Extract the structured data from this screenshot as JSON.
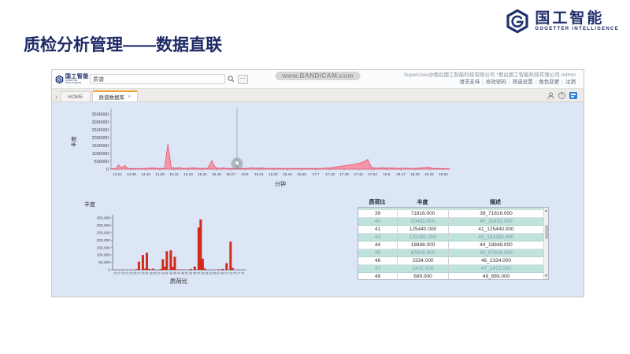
{
  "slide": {
    "title": "质检分析管理——数据直联",
    "brand": {
      "name": "国工智能",
      "subtitle": "GOGETTER INTELLIGENCE"
    }
  },
  "app": {
    "header": {
      "logo_name": "国工智能",
      "logo_sub": "GOGETTER INTELLIGENCE",
      "search_value": "质谱",
      "more_button": "⋯",
      "watermark": "www.BANDICAM.com",
      "user_line": "SuperUser@烟台国工智能科技有限公司 *烟台国工智能科技有限公司 Admin",
      "links": [
        "请求支持",
        "修改密码",
        "筛选设置",
        "角色变更",
        "注销"
      ],
      "link_separator": "|"
    },
    "tab_bar": {
      "collapse_chevron": "›",
      "tabs": [
        {
          "label": "HOME",
          "active": false
        },
        {
          "label": "质谱数据库",
          "active": true,
          "close": "×"
        }
      ],
      "help_icon": "?"
    }
  },
  "chart_data": [
    {
      "type": "area",
      "ylabel": "丰度",
      "xlabel": "分钟",
      "ylim": [
        0,
        3500000
      ],
      "y_ticks": [
        0,
        500000,
        1000000,
        1500000,
        2000000,
        2500000,
        3000000,
        3500000
      ],
      "x_tick_labels": [
        "14.24",
        "14.36",
        "14.48",
        "14.59",
        "15.11",
        "15.23",
        "15.34",
        "15.46",
        "15.57",
        "16.9",
        "16.21",
        "16.32",
        "16.44",
        "16.56",
        "17.7",
        "17.19",
        "17.30",
        "17.42",
        "17.54",
        "18.5",
        "18.17",
        "18.29",
        "18.40",
        "18.52"
      ],
      "area_color": "#f78da1",
      "line_color": "#e8566f",
      "cursor_x_frac": 0.372,
      "profile_frac_abundance": [
        [
          0.0,
          25000
        ],
        [
          0.015,
          50000
        ],
        [
          0.022,
          270000
        ],
        [
          0.032,
          70000
        ],
        [
          0.04,
          230000
        ],
        [
          0.05,
          50000
        ],
        [
          0.07,
          35000
        ],
        [
          0.095,
          45000
        ],
        [
          0.125,
          85000
        ],
        [
          0.14,
          40000
        ],
        [
          0.158,
          55000
        ],
        [
          0.168,
          1600000
        ],
        [
          0.178,
          110000
        ],
        [
          0.19,
          55000
        ],
        [
          0.2,
          105000
        ],
        [
          0.212,
          45000
        ],
        [
          0.248,
          85000
        ],
        [
          0.26,
          45000
        ],
        [
          0.285,
          55000
        ],
        [
          0.298,
          545000
        ],
        [
          0.306,
          170000
        ],
        [
          0.315,
          55000
        ],
        [
          0.33,
          75000
        ],
        [
          0.345,
          40000
        ],
        [
          0.37,
          45000
        ],
        [
          0.4,
          40000
        ],
        [
          0.415,
          85000
        ],
        [
          0.428,
          55000
        ],
        [
          0.445,
          85000
        ],
        [
          0.458,
          45000
        ],
        [
          0.48,
          55000
        ],
        [
          0.505,
          38000
        ],
        [
          0.53,
          45000
        ],
        [
          0.555,
          38000
        ],
        [
          0.58,
          45000
        ],
        [
          0.605,
          40000
        ],
        [
          0.628,
          55000
        ],
        [
          0.648,
          90000
        ],
        [
          0.672,
          160000
        ],
        [
          0.7,
          255000
        ],
        [
          0.722,
          330000
        ],
        [
          0.742,
          430000
        ],
        [
          0.752,
          530000
        ],
        [
          0.758,
          625000
        ],
        [
          0.765,
          280000
        ],
        [
          0.772,
          85000
        ],
        [
          0.788,
          65000
        ],
        [
          0.802,
          90000
        ],
        [
          0.816,
          65000
        ],
        [
          0.832,
          80000
        ],
        [
          0.85,
          50000
        ],
        [
          0.865,
          70000
        ],
        [
          0.882,
          55000
        ],
        [
          0.902,
          48000
        ],
        [
          0.925,
          105000
        ],
        [
          0.94,
          115000
        ],
        [
          0.952,
          45000
        ],
        [
          0.97,
          38000
        ],
        [
          0.988,
          28000
        ],
        [
          1.0,
          18000
        ]
      ]
    },
    {
      "type": "bar",
      "ylabel": "丰度",
      "xlabel": "质荷比",
      "ylim": [
        0,
        350000
      ],
      "y_tick_labels": [
        "0",
        "50,000",
        "100,000",
        "150,000",
        "200,000",
        "250,000",
        "300,000",
        "350,000"
      ],
      "x_ticks": [
        15,
        17,
        19,
        21,
        23,
        25,
        27,
        29,
        31,
        33,
        35,
        37,
        39,
        41,
        43,
        45,
        47,
        49,
        51,
        53,
        55,
        57,
        59,
        61,
        63,
        65,
        67,
        69,
        71,
        73,
        75,
        77,
        79
      ],
      "bar_color": "#d02b1b",
      "bars": [
        [
          26,
          4000
        ],
        [
          27,
          55000
        ],
        [
          29,
          100000
        ],
        [
          30,
          8000
        ],
        [
          31,
          115000
        ],
        [
          32,
          6000
        ],
        [
          34,
          8000
        ],
        [
          38,
          5000
        ],
        [
          39,
          71816
        ],
        [
          40,
          20432
        ],
        [
          41,
          125440
        ],
        [
          43,
          131392
        ],
        [
          44,
          18848
        ],
        [
          45,
          87816
        ],
        [
          46,
          2334
        ],
        [
          47,
          1472
        ],
        [
          49,
          689
        ],
        [
          53,
          6000
        ],
        [
          55,
          22000
        ],
        [
          57,
          285000
        ],
        [
          58,
          340000
        ],
        [
          59,
          75000
        ],
        [
          60,
          9000
        ],
        [
          67,
          3000
        ],
        [
          69,
          6000
        ],
        [
          71,
          45000
        ],
        [
          73,
          190000
        ],
        [
          74,
          13000
        ]
      ]
    }
  ],
  "table": {
    "headers": [
      "质荷比",
      "丰度",
      "描述"
    ],
    "rows": [
      [
        "39",
        "71816.000",
        "39_71816.000"
      ],
      [
        "40",
        "20432.000",
        "40_20432.000"
      ],
      [
        "41",
        "125440.000",
        "41_125440.000"
      ],
      [
        "43",
        "131392.000",
        "43_131392.000"
      ],
      [
        "44",
        "18848.000",
        "44_18848.000"
      ],
      [
        "45",
        "87816.000",
        "45_87816.000"
      ],
      [
        "46",
        "2334.000",
        "46_2334.000"
      ],
      [
        "47",
        "1472.000",
        "47_1472.000"
      ],
      [
        "49",
        "689.000",
        "49_689.000"
      ]
    ],
    "scroll_up": "▲",
    "scroll_down": "▼"
  }
}
